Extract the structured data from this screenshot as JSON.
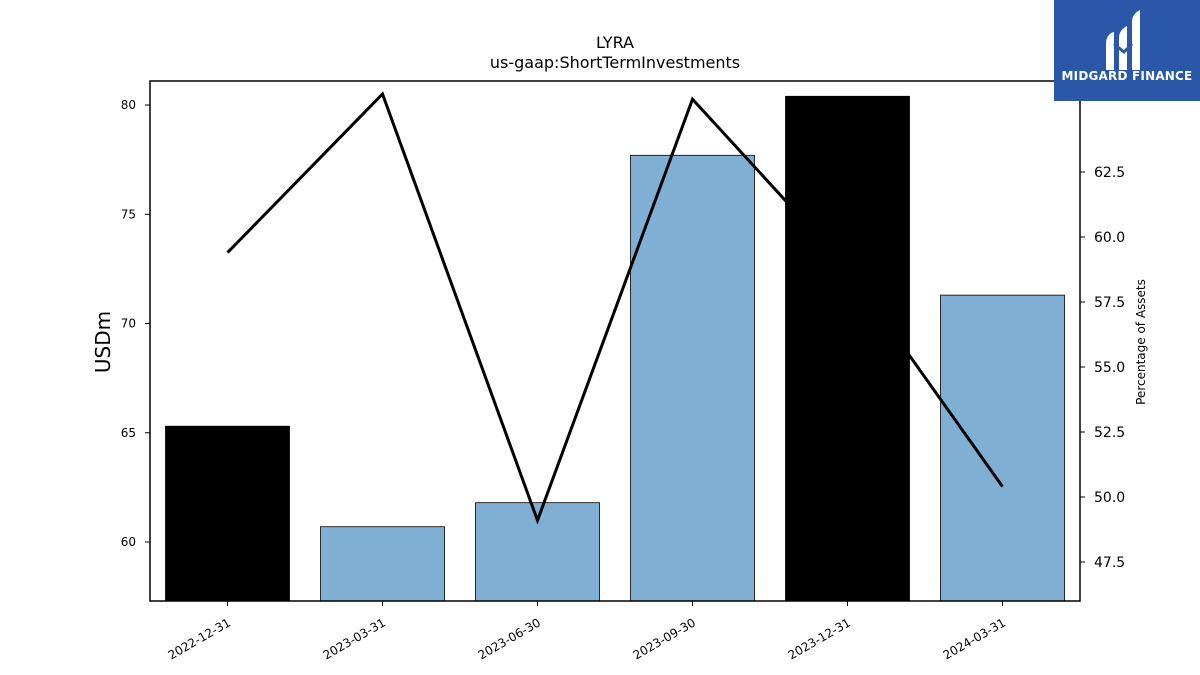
{
  "chart_data": {
    "type": "bar",
    "title": "LYRA",
    "subtitle": "us-gaap:ShortTermInvestments",
    "ylabel": "USDm",
    "y2label": "Percentage of Assets",
    "categories": [
      "2022-12-31",
      "2023-03-31",
      "2023-06-30",
      "2023-09-30",
      "2023-12-31",
      "2024-03-31"
    ],
    "series": [
      {
        "type": "bar",
        "axis": "left",
        "values": [
          65.3,
          60.7,
          61.8,
          77.7,
          80.4,
          71.3
        ],
        "colors": [
          "#000000",
          "#7fb0d4",
          "#7fb0d4",
          "#7fb0d4",
          "#000000",
          "#7fb0d4"
        ]
      },
      {
        "type": "line",
        "axis": "right",
        "color": "#000000",
        "values": [
          59.4,
          65.5,
          49.1,
          65.3,
          58.8,
          50.4
        ]
      }
    ],
    "ylim": [
      57.3,
      81.1
    ],
    "y2lim": [
      46.0,
      66.0
    ],
    "yticks": [
      60,
      65,
      70,
      75,
      80
    ],
    "y2ticks": [
      47.5,
      50.0,
      52.5,
      55.0,
      57.5,
      60.0,
      62.5
    ],
    "grid": false,
    "legend": "none"
  },
  "logo": {
    "text": "MIDGARD FINANCE",
    "background": "#2b57a8"
  }
}
